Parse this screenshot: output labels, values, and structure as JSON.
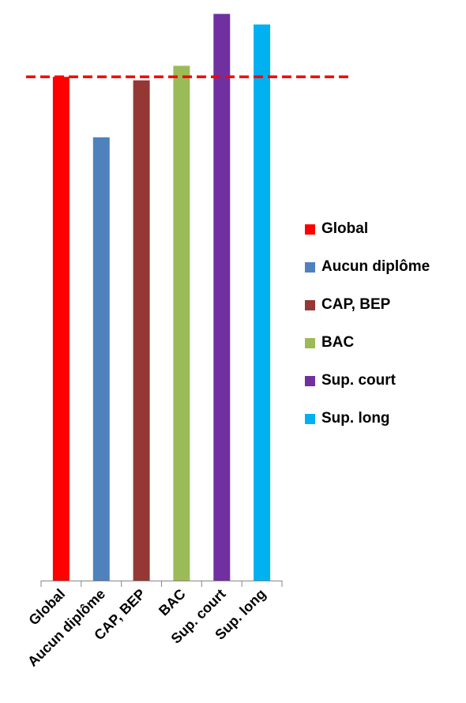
{
  "chart_data": {
    "type": "bar",
    "categories": [
      "Global",
      "Aucun diplôme",
      "CAP, BEP",
      "BAC",
      "Sup. court",
      "Sup. long"
    ],
    "values": [
      100,
      88,
      99.3,
      102.2,
      112.5,
      110.4
    ],
    "colors": [
      "#ff0000",
      "#4f81bd",
      "#953735",
      "#9bbb59",
      "#7030a0",
      "#00b0f0"
    ],
    "ylim": [
      0,
      114
    ],
    "reference_line": {
      "value": 100,
      "color": "#ff0000",
      "style": "dashed"
    },
    "legend": {
      "position": "right",
      "items": [
        {
          "label": "Global",
          "color": "#ff0000"
        },
        {
          "label": "Aucun diplôme",
          "color": "#4f81bd"
        },
        {
          "label": "CAP, BEP",
          "color": "#953735"
        },
        {
          "label": "BAC",
          "color": "#9bbb59"
        },
        {
          "label": "Sup. court",
          "color": "#7030a0"
        },
        {
          "label": "Sup. long",
          "color": "#00b0f0"
        }
      ]
    },
    "title": "",
    "xlabel": "",
    "ylabel": "",
    "grid": false
  }
}
